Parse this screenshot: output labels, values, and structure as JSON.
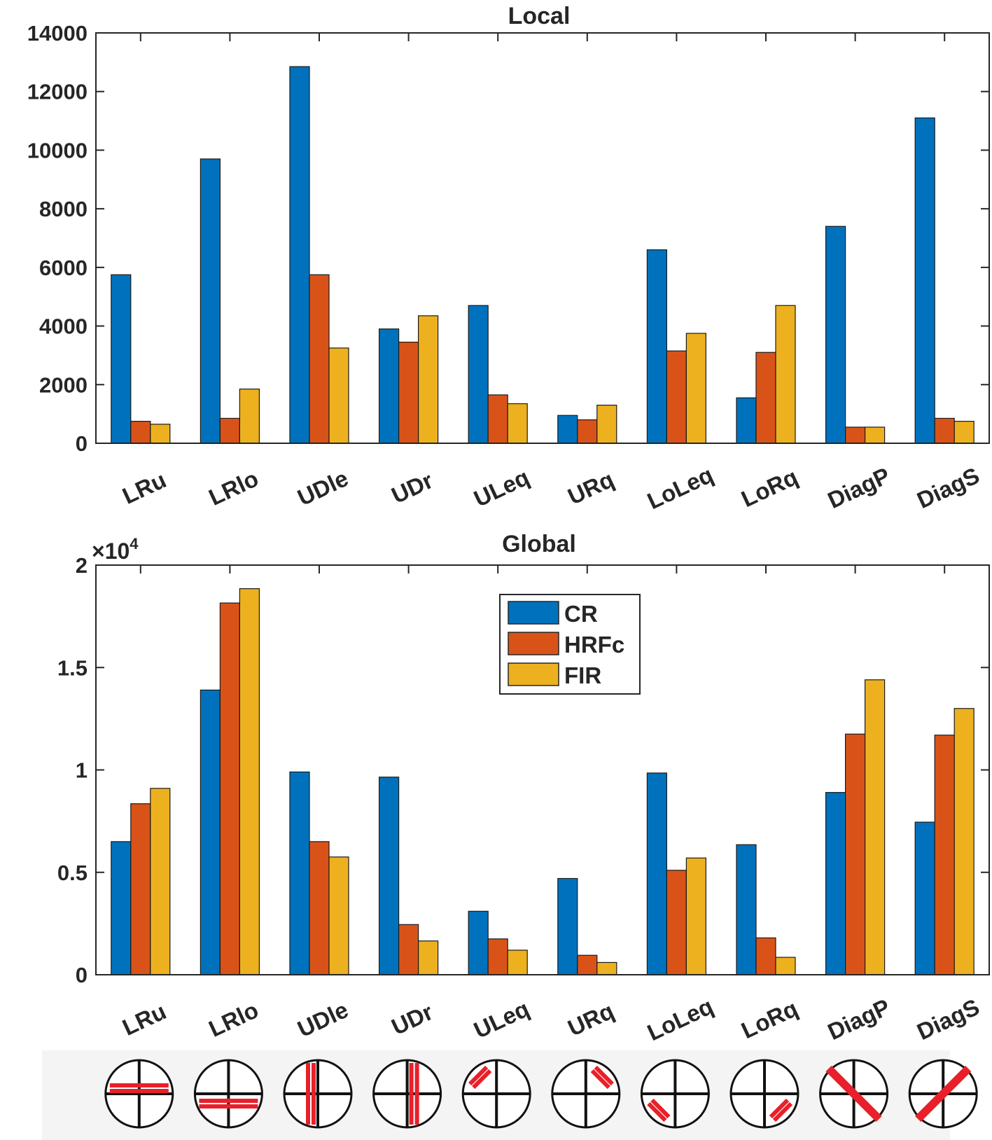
{
  "colors": {
    "CR": "#0072BD",
    "HRFc": "#D95319",
    "FIR": "#EDB120",
    "axis": "#262626",
    "glyph": "#E8202A"
  },
  "legend": {
    "entries": [
      "CR",
      "HRFc",
      "FIR"
    ]
  },
  "chart_data": [
    {
      "type": "bar",
      "title": "Local",
      "categories": [
        "LRu",
        "LRlo",
        "UDle",
        "UDr",
        "ULeq",
        "URq",
        "LoLeq",
        "LoRq",
        "DiagP",
        "DiagS"
      ],
      "series": [
        {
          "name": "CR",
          "values": [
            5750,
            9700,
            12850,
            3900,
            4700,
            950,
            6600,
            1550,
            7400,
            11100
          ]
        },
        {
          "name": "HRFc",
          "values": [
            750,
            850,
            5750,
            3450,
            1650,
            800,
            3150,
            3100,
            550,
            850
          ]
        },
        {
          "name": "FIR",
          "values": [
            650,
            1850,
            3250,
            4350,
            1350,
            1300,
            3750,
            4700,
            550,
            750
          ]
        }
      ],
      "ylim": [
        0,
        14000
      ],
      "yticks": [
        "0",
        "2000",
        "4000",
        "6000",
        "8000",
        "10000",
        "12000",
        "14000"
      ],
      "ytick_values": [
        0,
        2000,
        4000,
        6000,
        8000,
        10000,
        12000,
        14000
      ],
      "xlabel": "",
      "ylabel": ""
    },
    {
      "type": "bar",
      "title": "Global",
      "multiplier_base": "×10",
      "multiplier_exp": "4",
      "categories": [
        "LRu",
        "LRlo",
        "UDle",
        "UDr",
        "ULeq",
        "URq",
        "LoLeq",
        "LoRq",
        "DiagP",
        "DiagS"
      ],
      "series": [
        {
          "name": "CR",
          "values": [
            0.65,
            1.39,
            0.99,
            0.965,
            0.31,
            0.47,
            0.985,
            0.635,
            0.89,
            0.745
          ]
        },
        {
          "name": "HRFc",
          "values": [
            0.835,
            1.815,
            0.65,
            0.245,
            0.175,
            0.095,
            0.51,
            0.18,
            1.175,
            1.17
          ]
        },
        {
          "name": "FIR",
          "values": [
            0.91,
            1.885,
            0.575,
            0.165,
            0.12,
            0.06,
            0.57,
            0.085,
            1.44,
            1.3
          ]
        }
      ],
      "ylim": [
        0,
        2
      ],
      "yticks": [
        "0",
        "0.5",
        "1",
        "1.5",
        "2"
      ],
      "ytick_values": [
        0,
        0.5,
        1,
        1.5,
        2
      ],
      "legend_position": "top-center",
      "xlabel": "",
      "ylabel": ""
    }
  ],
  "glyphs": [
    "LRu",
    "LRlo",
    "UDle",
    "UDr",
    "ULeq",
    "URq",
    "LoLeq",
    "LoRq",
    "DiagP",
    "DiagS"
  ]
}
